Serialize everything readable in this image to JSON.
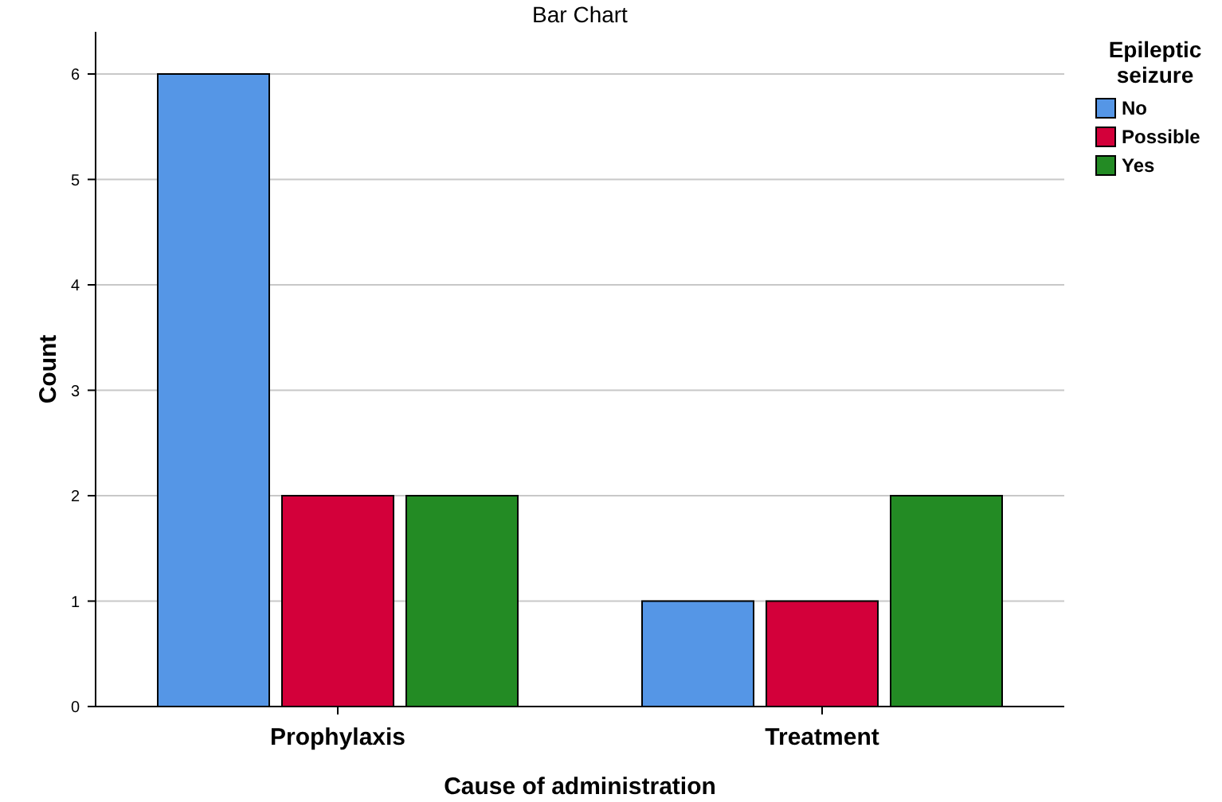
{
  "chart_data": {
    "type": "bar",
    "title": "Bar Chart",
    "xlabel": "Cause of administration",
    "ylabel": "Count",
    "legend_title": "Epileptic seizure",
    "categories": [
      "Prophylaxis",
      "Treatment"
    ],
    "series": [
      {
        "name": "No",
        "color": "#5596e6",
        "values": [
          6,
          1
        ]
      },
      {
        "name": "Possible",
        "color": "#d3003a",
        "values": [
          2,
          1
        ]
      },
      {
        "name": "Yes",
        "color": "#238b24",
        "values": [
          2,
          2
        ]
      }
    ],
    "ylim": [
      0,
      6.4
    ],
    "yticks": [
      0,
      1,
      2,
      3,
      4,
      5,
      6
    ],
    "grid": "y",
    "legend": "top right"
  }
}
